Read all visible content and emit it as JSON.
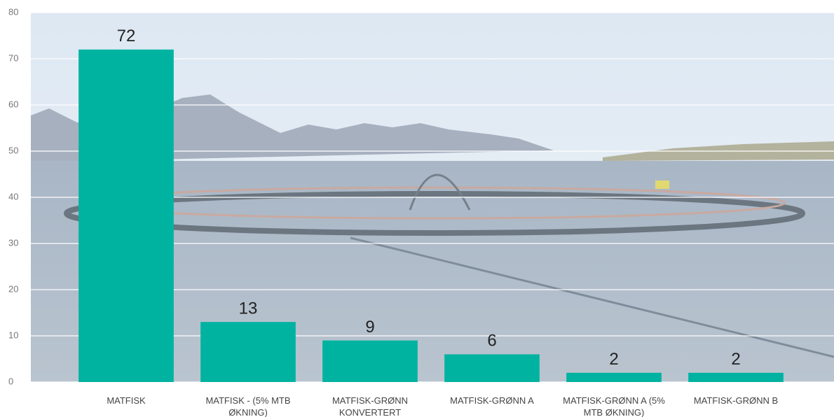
{
  "chart_data": {
    "type": "bar",
    "categories": [
      "MATFISK",
      "MATFISK - (5% MTB ØKNING)",
      "MATFISK-GRØNN KONVERTERT",
      "MATFISK-GRØNN A",
      "MATFISK-GRØNN A (5% MTB ØKNING)",
      "MATFISK-GRØNN B"
    ],
    "values": [
      72,
      13,
      9,
      6,
      2,
      2
    ],
    "color": "#00b3a1",
    "ylim": [
      0,
      80
    ],
    "yticks": [
      0,
      10,
      20,
      30,
      40,
      50,
      60,
      70,
      80
    ],
    "grid": true
  }
}
